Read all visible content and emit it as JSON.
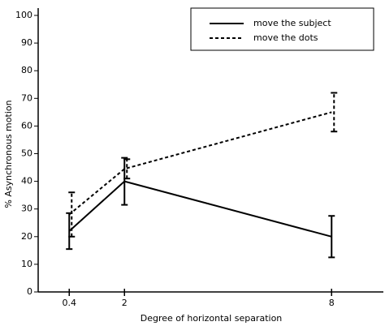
{
  "chart_data": {
    "type": "line",
    "xlabel": "Degree of horizontal separation",
    "ylabel": "% Asynchronous motion",
    "x": [
      0.4,
      2,
      8
    ],
    "xlim": [
      -0.5,
      9.5
    ],
    "xticks": [
      0.4,
      2,
      8
    ],
    "ylim": [
      0,
      100
    ],
    "yticks": [
      0,
      10,
      20,
      30,
      40,
      50,
      60,
      70,
      80,
      90,
      100
    ],
    "legend": "upper right",
    "series": [
      {
        "name": "move the subject",
        "color": "#000000",
        "line_style": "solid",
        "values": [
          22,
          40,
          20
        ],
        "errors": [
          6.5,
          8.5,
          7.5
        ]
      },
      {
        "name": "move the dots",
        "color": "#000000",
        "line_style": "dashed",
        "values": [
          28,
          44.5,
          65
        ],
        "errors": [
          8,
          3.5,
          7
        ]
      }
    ]
  }
}
